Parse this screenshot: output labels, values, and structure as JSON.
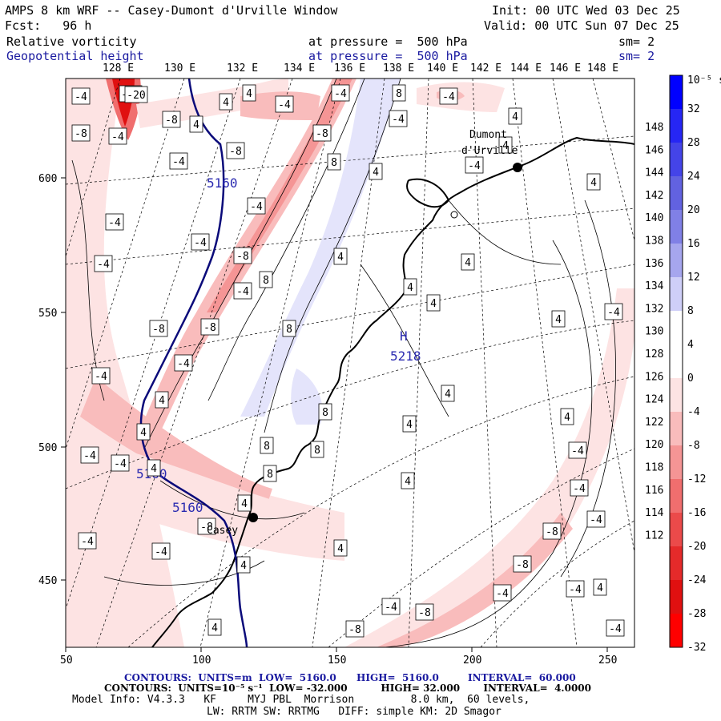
{
  "header": {
    "title": "AMPS 8 km WRF -- Casey-Dumont d'Urville Window",
    "init": "Init: 00 UTC Wed 03 Dec 25",
    "fcst": "Fcst:   96 h",
    "valid": "Valid: 00 UTC Sun 07 Dec 25",
    "field1": "Relative vorticity",
    "pressure1": "at pressure =  500 hPa",
    "sm1": "sm= 2",
    "field2": "Geopotential height",
    "pressure2": "at pressure =  500 hPa",
    "sm2": "sm= 2"
  },
  "top_longitudes": [
    "128 E",
    "130 E",
    "132 E",
    "134 E",
    "136 E",
    "138 E",
    "140 E",
    "142 E",
    "144 E",
    "146 E",
    "148 E"
  ],
  "right_longitudes": [
    "148 E",
    "146 E",
    "144 E",
    "142 E",
    "140 E",
    "138 E",
    "136 E",
    "134 E",
    "132 E",
    "130 E",
    "128 E",
    "126 E",
    "124 E",
    "122 E",
    "120 E",
    "118 E",
    "116 E",
    "114 E",
    "112 E"
  ],
  "x_ticks": [
    "50",
    "100",
    "150",
    "200",
    "250"
  ],
  "y_ticks": [
    "600",
    "550",
    "500",
    "450"
  ],
  "colorbar": {
    "unit_label": "10⁻⁵ s⁻¹",
    "labels": [
      "32",
      "28",
      "24",
      "20",
      "16",
      "12",
      "8",
      "4",
      "0",
      "-4",
      "-8",
      "-12",
      "-16",
      "-20",
      "-24",
      "-28",
      "-32"
    ],
    "colors": [
      "#0000ff",
      "#2626f4",
      "#4444e8",
      "#6262e0",
      "#8080e6",
      "#a6a6ee",
      "#cfcff8",
      "#ffffff",
      "#ffffff",
      "#fde3e3",
      "#f9bcbc",
      "#f59595",
      "#f06e6e",
      "#eb4a4a",
      "#e52a2a",
      "#e01010",
      "#ff0000"
    ]
  },
  "stations": [
    {
      "name": "Dumont\nd'Urville"
    },
    {
      "name": "Casey"
    }
  ],
  "height_labels": [
    "5160",
    "5160",
    "5160",
    "H",
    "5218"
  ],
  "vort_labels": [
    "-4",
    "-8",
    "4",
    "8",
    "-20"
  ],
  "footer": {
    "line1a": "CONTOURS:  UNITS=m  LOW=  5160.0",
    "line1b": "HIGH=  5160.0",
    "line1c": "INTERVAL=  60.000",
    "line2": "CONTOURS:  UNITS=10⁻⁵ s⁻¹  LOW= -32.000          HIGH= 32.000       INTERVAL=  4.0000",
    "line3": "Model Info: V4.3.3   KF     MYJ PBL  Morrison         8.0 km,  60 levels,",
    "line4": "LW: RRTM SW: RRTMG   DIFF: simple KM: 2D Smagor"
  }
}
